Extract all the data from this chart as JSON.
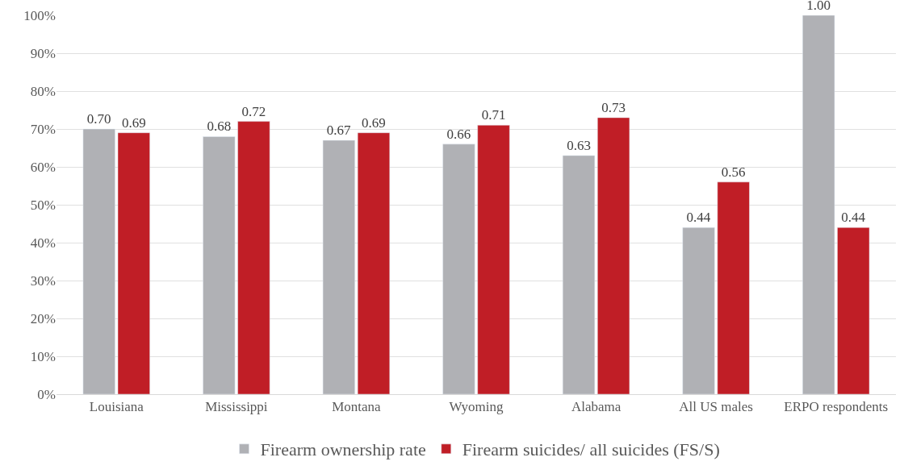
{
  "chart_data": {
    "type": "bar",
    "categories": [
      "Louisiana",
      "Mississippi",
      "Montana",
      "Wyoming",
      "Alabama",
      "All US males",
      "ERPO respondents"
    ],
    "series": [
      {
        "name": "Firearm ownership rate",
        "color": "#b0b1b5",
        "values": [
          0.7,
          0.68,
          0.67,
          0.66,
          0.63,
          0.44,
          1.0
        ],
        "value_labels": [
          "0.70",
          "0.68",
          "0.67",
          "0.66",
          "0.63",
          "0.44",
          "1.00"
        ]
      },
      {
        "name": "Firearm suicides/ all suicides (FS/S)",
        "color": "#c01e26",
        "values": [
          0.69,
          0.72,
          0.69,
          0.71,
          0.73,
          0.56,
          0.44
        ],
        "value_labels": [
          "0.69",
          "0.72",
          "0.69",
          "0.71",
          "0.73",
          "0.56",
          "0.44"
        ]
      }
    ],
    "ylim": [
      0,
      1.0
    ],
    "yticks": [
      {
        "value": 0,
        "label": "0%"
      },
      {
        "value": 0.1,
        "label": "10%"
      },
      {
        "value": 0.2,
        "label": "20%"
      },
      {
        "value": 0.3,
        "label": "30%"
      },
      {
        "value": 0.4,
        "label": "40%"
      },
      {
        "value": 0.5,
        "label": "50%"
      },
      {
        "value": 0.6,
        "label": "60%"
      },
      {
        "value": 0.7,
        "label": "70%"
      },
      {
        "value": 0.8,
        "label": "80%"
      },
      {
        "value": 0.9,
        "label": "90%"
      },
      {
        "value": 1.0,
        "label": "100%"
      }
    ],
    "grid": "y",
    "legend": "bottom"
  }
}
